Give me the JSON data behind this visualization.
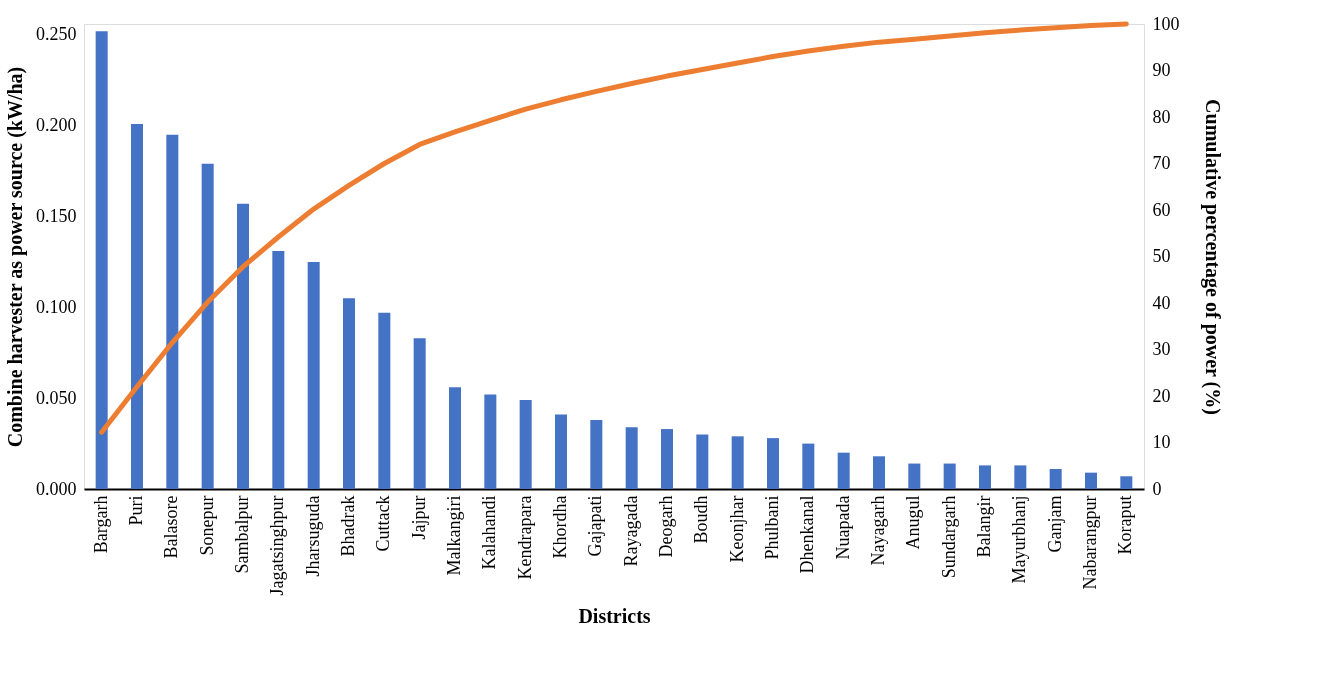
{
  "chart_data": {
    "type": "bar",
    "xlabel": "Districts",
    "ylabel": "Combine harvester as power source (kW/ha)",
    "y2label": "Cumulative percentage of power (%)",
    "categories": [
      "Bargarh",
      "Puri",
      "Balasore",
      "Sonepur",
      "Sambalpur",
      "Jagatsinghpur",
      "Jharsuguda",
      "Bhadrak",
      "Cuttack",
      "Jajpur",
      "Malkangiri",
      "Kalahandi",
      "Kendrapara",
      "Khordha",
      "Gajapati",
      "Rayagada",
      "Deogarh",
      "Boudh",
      "Keonjhar",
      "Phulbani",
      "Dhenkanal",
      "Nuapada",
      "Nayagarh",
      "Anugul",
      "Sundargarh",
      "Balangir",
      "Mayurbhanj",
      "Ganjam",
      "Nabarangpur",
      "Koraput"
    ],
    "series": [
      {
        "color": "#4472c4",
        "values": [
          0.252,
          0.201,
          0.195,
          0.179,
          0.157,
          0.131,
          0.125,
          0.105,
          0.097,
          0.083,
          0.056,
          0.052,
          0.049,
          0.041,
          0.038,
          0.034,
          0.033,
          0.03,
          0.029,
          0.028,
          0.025,
          0.02,
          0.018,
          0.014,
          0.014,
          0.013,
          0.013,
          0.011,
          0.009,
          0.007
        ]
      },
      {
        "type": "line",
        "axis": "y2",
        "color": "#ed7d31",
        "values": [
          12.2,
          22.0,
          31.5,
          40.2,
          47.8,
          54.2,
          60.2,
          65.3,
          70.0,
          74.1,
          76.8,
          79.3,
          81.7,
          83.7,
          85.5,
          87.2,
          88.8,
          90.2,
          91.6,
          93.0,
          94.2,
          95.2,
          96.1,
          96.7,
          97.4,
          98.1,
          98.7,
          99.2,
          99.7,
          100
        ]
      }
    ],
    "ylim": [
      0,
      0.256
    ],
    "yticks": [
      {
        "value": 0,
        "label": "0.000"
      },
      {
        "value": 0.05,
        "label": "0.050"
      },
      {
        "value": 0.1,
        "label": "0.100"
      },
      {
        "value": 0.15,
        "label": "0.150"
      },
      {
        "value": 0.2,
        "label": "0.200"
      },
      {
        "value": 0.25,
        "label": "0.250"
      }
    ],
    "y2lim": [
      0,
      100
    ],
    "y2ticks": [
      0,
      10,
      20,
      30,
      40,
      50,
      60,
      70,
      80,
      90,
      100
    ],
    "grid": false
  }
}
